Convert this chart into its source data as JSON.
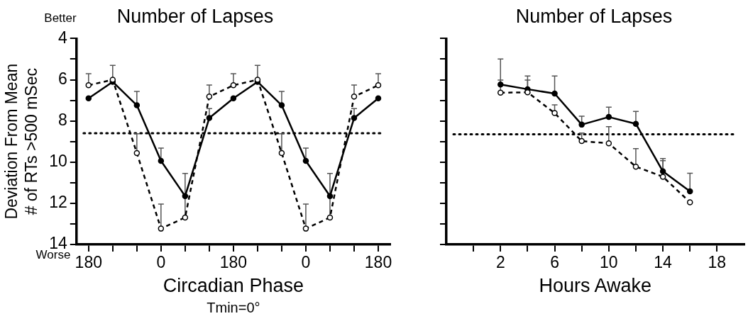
{
  "chart_data": [
    {
      "type": "line",
      "title": "Number of Lapses",
      "xlabel": "Circadian Phase",
      "ylabel": "Deviation From Mean\n# of RTs >500 mSec",
      "annotations": [
        "Better",
        "Worse",
        "Tmin=0°"
      ],
      "categories": [
        "180",
        null,
        null,
        "0",
        null,
        null,
        "180",
        null,
        null,
        "0",
        null,
        null,
        "180"
      ],
      "series": [
        {
          "color": "#000000",
          "marker": "circle",
          "line_style": "solid",
          "values": [
            6.9,
            6.1,
            7.24,
            9.94,
            11.65,
            7.86,
            6.9,
            6.1,
            7.24,
            9.94,
            11.65,
            7.86,
            6.9
          ],
          "errors": [
            null,
            null,
            [
              6.57,
              7.24
            ],
            [
              9.32,
              9.94
            ],
            null,
            [
              7.4,
              7.86
            ],
            null,
            null,
            [
              6.57,
              7.24
            ],
            [
              9.32,
              9.94
            ],
            null,
            [
              7.4,
              7.86
            ],
            null
          ]
        },
        {
          "color": "#000000",
          "marker": "circle",
          "line_style": "dashed",
          "values": [
            6.27,
            6.0,
            9.56,
            13.23,
            12.69,
            6.82,
            6.27,
            6.0,
            9.56,
            13.23,
            12.69,
            6.82,
            6.27
          ],
          "errors": [
            [
              5.71,
              6.27
            ],
            [
              5.3,
              6.0
            ],
            [
              8.62,
              9.56
            ],
            [
              12.04,
              13.23
            ],
            [
              10.55,
              12.69
            ],
            [
              6.26,
              6.82
            ],
            [
              5.71,
              6.27
            ],
            [
              5.3,
              6.0
            ],
            [
              8.62,
              9.56
            ],
            [
              12.04,
              13.23
            ],
            [
              10.55,
              12.69
            ],
            [
              6.26,
              6.82
            ],
            [
              5.71,
              6.27
            ]
          ]
        }
      ],
      "ylim": [
        14,
        4
      ],
      "yticks": [
        4,
        {
          "value": 5,
          "label": null
        },
        6,
        {
          "value": 7,
          "label": null
        },
        8,
        {
          "value": 9,
          "label": null
        },
        10,
        {
          "value": 11,
          "label": null
        },
        12,
        {
          "value": 13,
          "label": null
        },
        14
      ],
      "ref_lines": [
        {
          "axis": "y",
          "value": 8.6,
          "line_style": "dotted"
        }
      ]
    },
    {
      "type": "line",
      "title": "Number of Lapses",
      "xlabel": "Hours Awake",
      "x": [
        2,
        4,
        6,
        8,
        10,
        12,
        14,
        16
      ],
      "series": [
        {
          "color": "#000000",
          "marker": "circle",
          "line_style": "solid",
          "values": [
            6.23,
            6.46,
            6.67,
            8.18,
            7.81,
            8.14,
            10.45,
            11.42
          ],
          "errors": [
            [
              4.99,
              6.23
            ],
            [
              5.82,
              6.46
            ],
            [
              5.82,
              6.67
            ],
            [
              7.77,
              8.18
            ],
            [
              7.33,
              7.81
            ],
            [
              7.54,
              8.14
            ],
            [
              9.83,
              10.45
            ],
            [
              10.54,
              11.42
            ]
          ]
        },
        {
          "color": "#000000",
          "marker": "circle",
          "line_style": "dashed",
          "values": [
            6.63,
            6.61,
            7.62,
            8.98,
            9.09,
            10.22,
            10.71,
            11.95
          ],
          "errors": [
            [
              6.02,
              6.63
            ],
            [
              6.02,
              6.61
            ],
            [
              7.22,
              7.62
            ],
            [
              8.59,
              8.98
            ],
            [
              8.28,
              9.09
            ],
            [
              9.35,
              10.22
            ],
            [
              9.93,
              10.71
            ],
            null
          ]
        }
      ],
      "xlim": [
        -2,
        20
      ],
      "xticks": [
        {
          "value": 0,
          "label": null
        },
        2,
        {
          "value": 4,
          "label": null
        },
        6,
        {
          "value": 8,
          "label": null
        },
        10,
        {
          "value": 12,
          "label": null
        },
        14,
        {
          "value": 16,
          "label": null
        },
        18
      ],
      "ylim": [
        14,
        4
      ],
      "yticks": [
        4,
        {
          "value": 5,
          "label": null
        },
        6,
        {
          "value": 7,
          "label": null
        },
        8,
        {
          "value": 9,
          "label": null
        },
        10,
        {
          "value": 11,
          "label": null
        },
        12,
        {
          "value": 13,
          "label": null
        },
        14
      ],
      "tick_labels": "x",
      "ref_lines": [
        {
          "axis": "y",
          "value": 8.65,
          "line_style": "dotted"
        }
      ]
    }
  ]
}
